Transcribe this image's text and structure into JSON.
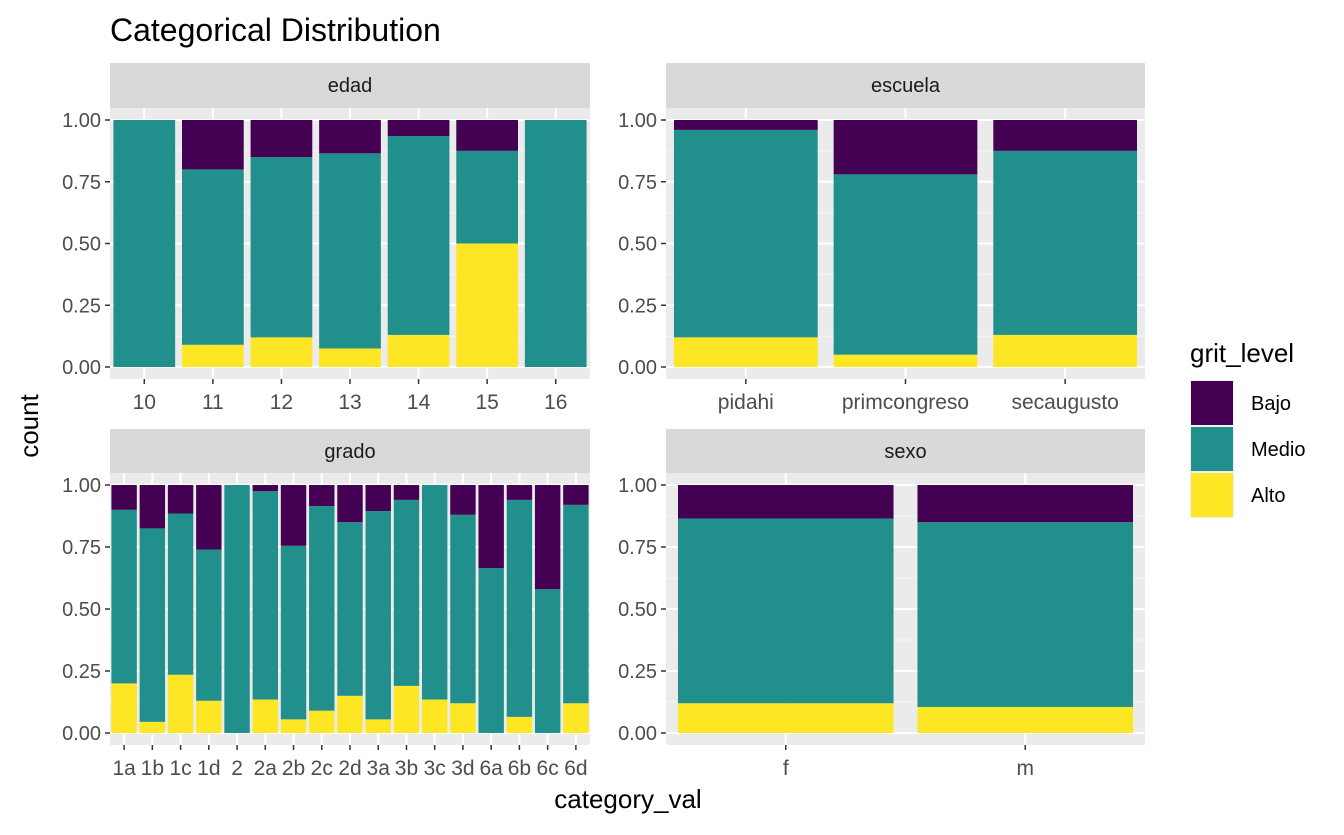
{
  "chart_data": {
    "type": "bar",
    "stacking": "fill",
    "title": "Categorical Distribution",
    "xlabel": "category_val",
    "ylabel": "count",
    "ylim": [
      0,
      1
    ],
    "yticks": [
      "0.00",
      "0.25",
      "0.50",
      "0.75",
      "1.00"
    ],
    "grid": true,
    "legend": {
      "title": "grit_level",
      "position": "right",
      "entries": [
        {
          "name": "Bajo",
          "color": "#440154"
        },
        {
          "name": "Medio",
          "color": "#21908C"
        },
        {
          "name": "Alto",
          "color": "#FDE725"
        }
      ]
    },
    "facets": [
      {
        "name": "edad",
        "categories": [
          "10",
          "11",
          "12",
          "13",
          "14",
          "15",
          "16"
        ],
        "series": [
          {
            "name": "Alto",
            "values": [
              0.0,
              0.09,
              0.12,
              0.075,
              0.13,
              0.5,
              0.0
            ]
          },
          {
            "name": "Medio",
            "values": [
              1.0,
              0.71,
              0.73,
              0.79,
              0.805,
              0.375,
              1.0
            ]
          },
          {
            "name": "Bajo",
            "values": [
              0.0,
              0.2,
              0.15,
              0.135,
              0.065,
              0.125,
              0.0
            ]
          }
        ]
      },
      {
        "name": "escuela",
        "categories": [
          "pidahi",
          "primcongreso",
          "secaugusto"
        ],
        "series": [
          {
            "name": "Alto",
            "values": [
              0.12,
              0.05,
              0.13
            ]
          },
          {
            "name": "Medio",
            "values": [
              0.84,
              0.73,
              0.745
            ]
          },
          {
            "name": "Bajo",
            "values": [
              0.04,
              0.22,
              0.125
            ]
          }
        ]
      },
      {
        "name": "grado",
        "categories": [
          "1a",
          "1b",
          "1c",
          "1d",
          "2",
          "2a",
          "2b",
          "2c",
          "2d",
          "3a",
          "3b",
          "3c",
          "3d",
          "6a",
          "6b",
          "6c",
          "6d"
        ],
        "series": [
          {
            "name": "Alto",
            "values": [
              0.2,
              0.045,
              0.235,
              0.13,
              0.0,
              0.135,
              0.055,
              0.09,
              0.15,
              0.055,
              0.19,
              0.135,
              0.12,
              0.0,
              0.065,
              0.0,
              0.12
            ]
          },
          {
            "name": "Medio",
            "values": [
              0.7,
              0.78,
              0.65,
              0.61,
              1.0,
              0.84,
              0.7,
              0.825,
              0.7,
              0.84,
              0.75,
              0.865,
              0.76,
              0.665,
              0.875,
              0.58,
              0.8
            ]
          },
          {
            "name": "Bajo",
            "values": [
              0.1,
              0.175,
              0.115,
              0.26,
              0.0,
              0.025,
              0.245,
              0.085,
              0.15,
              0.105,
              0.06,
              0.0,
              0.12,
              0.335,
              0.06,
              0.42,
              0.08
            ]
          }
        ]
      },
      {
        "name": "sexo",
        "categories": [
          "f",
          "m"
        ],
        "series": [
          {
            "name": "Alto",
            "values": [
              0.12,
              0.105
            ]
          },
          {
            "name": "Medio",
            "values": [
              0.745,
              0.745
            ]
          },
          {
            "name": "Bajo",
            "values": [
              0.135,
              0.15
            ]
          }
        ]
      }
    ]
  }
}
